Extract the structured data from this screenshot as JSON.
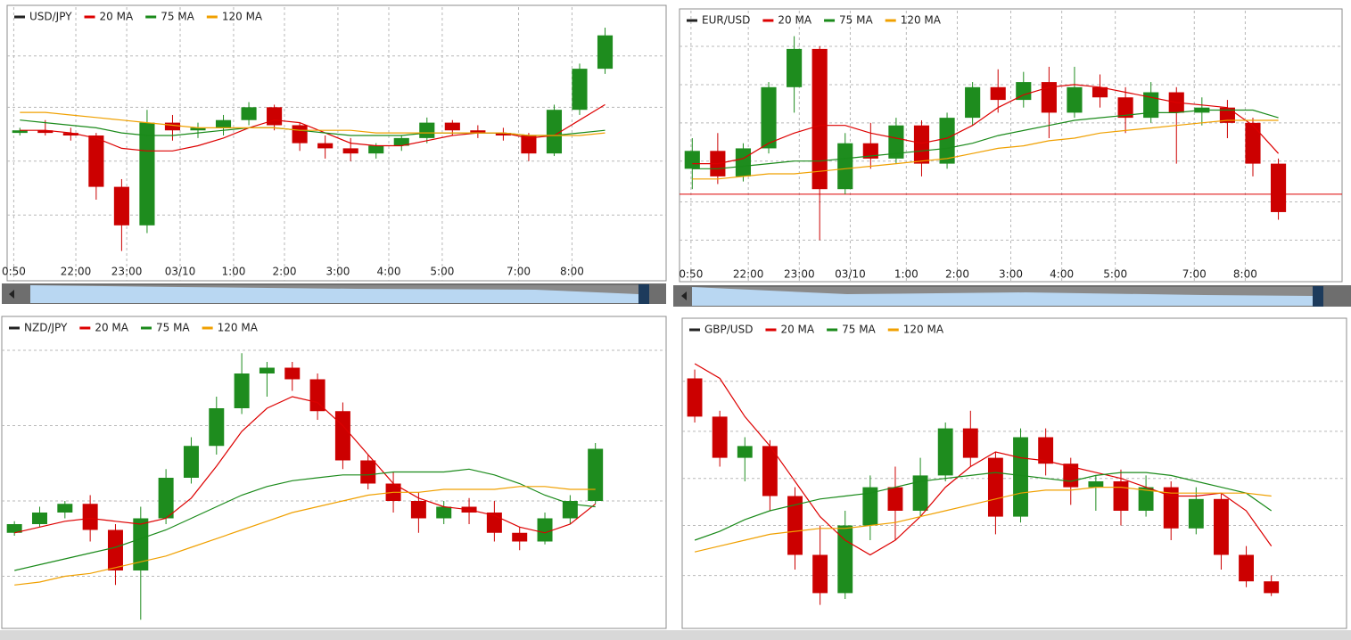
{
  "chart_data": [
    {
      "type": "candlestick",
      "up_color": "#1e8c1e",
      "down_color": "#cc0000",
      "grid": true,
      "xlim": [
        0,
        25.9
      ],
      "ylim": [
        0,
        100
      ],
      "yticks": [
        19,
        40,
        61,
        81
      ],
      "xticks": [
        {
          "value": 0.26,
          "label": "0:50"
        },
        {
          "value": 2.7,
          "label": "22:00"
        },
        {
          "value": 4.7,
          "label": "23:00"
        },
        {
          "value": 6.8,
          "label": "03/10"
        },
        {
          "value": 8.9,
          "label": "1:00"
        },
        {
          "value": 10.9,
          "label": "2:00"
        },
        {
          "value": 13.0,
          "label": "3:00"
        },
        {
          "value": 15.0,
          "label": "4:00"
        },
        {
          "value": 17.1,
          "label": "5:00"
        },
        {
          "value": 20.1,
          "label": "7:00"
        },
        {
          "value": 22.2,
          "label": "8:00"
        }
      ],
      "series": [
        {
          "name": "USD/JPY",
          "color": "#222222",
          "open": [
            51,
            52,
            51,
            50,
            30,
            15,
            55,
            52,
            53,
            56,
            61,
            54,
            47,
            45,
            43,
            46,
            49,
            55,
            52,
            51,
            50,
            43,
            60,
            76
          ],
          "high": [
            53,
            56,
            53,
            51,
            33,
            60,
            58,
            55,
            58,
            63,
            62,
            55,
            50,
            49,
            47,
            50,
            57,
            56,
            54,
            53,
            51,
            62,
            78,
            92
          ],
          "low": [
            50,
            50,
            48,
            25,
            5,
            12,
            48,
            49,
            50,
            54,
            52,
            44,
            41,
            40,
            41,
            44,
            47,
            50,
            49,
            48,
            40,
            42,
            58,
            74
          ],
          "close": [
            52,
            51,
            50,
            30,
            15,
            55,
            52,
            53,
            56,
            61,
            54,
            47,
            45,
            43,
            46,
            49,
            55,
            52,
            51,
            50,
            43,
            60,
            76,
            89
          ]
        },
        {
          "name": "20 MA",
          "color": "#dd0000",
          "values": [
            52,
            52,
            51,
            49,
            45,
            44,
            44,
            46,
            49,
            53,
            56,
            55,
            51,
            47,
            46,
            46,
            48,
            50,
            51,
            51,
            49,
            50,
            56,
            62
          ]
        },
        {
          "name": "75 MA",
          "color": "#1a8a1a",
          "values": [
            56,
            55,
            54,
            53,
            51,
            50,
            50,
            51,
            52,
            53,
            53,
            52,
            51,
            50,
            50,
            50,
            51,
            51,
            51,
            51,
            50,
            50,
            51,
            52
          ]
        },
        {
          "name": "120 MA",
          "color": "#f0a000",
          "values": [
            59,
            59,
            58,
            57,
            56,
            55,
            54,
            53,
            53,
            53,
            53,
            52,
            52,
            52,
            51,
            51,
            51,
            51,
            51,
            51,
            50,
            50,
            50,
            51
          ]
        }
      ]
    },
    {
      "type": "candlestick",
      "up_color": "#1e8c1e",
      "down_color": "#cc0000",
      "grid": true,
      "xlim": [
        0,
        26.0
      ],
      "ylim": [
        0,
        100
      ],
      "yticks": [
        10,
        25,
        41,
        56,
        71,
        86
      ],
      "price_line": 28,
      "xticks": [
        {
          "value": 0.45,
          "label": "0:50"
        },
        {
          "value": 2.7,
          "label": "22:00"
        },
        {
          "value": 4.7,
          "label": "23:00"
        },
        {
          "value": 6.7,
          "label": "03/10"
        },
        {
          "value": 8.9,
          "label": "1:00"
        },
        {
          "value": 10.9,
          "label": "2:00"
        },
        {
          "value": 13.0,
          "label": "3:00"
        },
        {
          "value": 15.0,
          "label": "4:00"
        },
        {
          "value": 17.1,
          "label": "5:00"
        },
        {
          "value": 20.2,
          "label": "7:00"
        },
        {
          "value": 22.2,
          "label": "8:00"
        }
      ],
      "series": [
        {
          "name": "EUR/USD",
          "color": "#222222",
          "open": [
            38,
            45,
            35,
            46,
            70,
            85,
            30,
            48,
            42,
            55,
            40,
            58,
            70,
            65,
            72,
            60,
            70,
            66,
            58,
            68,
            60,
            62,
            56,
            40
          ],
          "high": [
            50,
            52,
            48,
            72,
            90,
            86,
            52,
            56,
            58,
            57,
            60,
            72,
            77,
            76,
            78,
            78,
            75,
            70,
            72,
            70,
            66,
            65,
            58,
            42
          ],
          "low": [
            30,
            32,
            33,
            44,
            60,
            10,
            28,
            38,
            40,
            35,
            38,
            55,
            60,
            62,
            50,
            58,
            62,
            52,
            56,
            40,
            55,
            50,
            35,
            18
          ],
          "close": [
            45,
            35,
            46,
            70,
            85,
            30,
            48,
            42,
            55,
            40,
            58,
            70,
            65,
            72,
            60,
            70,
            66,
            58,
            68,
            60,
            62,
            56,
            40,
            21
          ]
        },
        {
          "name": "20 MA",
          "color": "#dd0000",
          "values": [
            40,
            40,
            42,
            48,
            52,
            55,
            55,
            52,
            50,
            48,
            50,
            55,
            62,
            67,
            70,
            71,
            70,
            68,
            66,
            64,
            63,
            62,
            55,
            44
          ]
        },
        {
          "name": "75 MA",
          "color": "#1a8a1a",
          "values": [
            38,
            38,
            39,
            40,
            41,
            41,
            42,
            43,
            44,
            45,
            46,
            48,
            51,
            53,
            55,
            57,
            58,
            59,
            60,
            60,
            61,
            61,
            61,
            58
          ]
        },
        {
          "name": "120 MA",
          "color": "#f0a000",
          "values": [
            34,
            34,
            35,
            36,
            36,
            37,
            38,
            39,
            40,
            41,
            42,
            44,
            46,
            47,
            49,
            50,
            52,
            53,
            54,
            55,
            56,
            57,
            57,
            57
          ]
        }
      ]
    },
    {
      "type": "candlestick",
      "up_color": "#1e8c1e",
      "down_color": "#cc0000",
      "grid": true,
      "xlim": [
        0,
        26.3
      ],
      "ylim": [
        0,
        100
      ],
      "yticks": [
        18,
        44,
        70,
        96
      ],
      "series": [
        {
          "name": "NZD/JPY",
          "color": "#222222",
          "open": [
            33,
            36,
            40,
            43,
            34,
            20,
            38,
            52,
            63,
            76,
            88,
            90,
            86,
            75,
            58,
            50,
            44,
            38,
            42,
            40,
            33,
            30,
            38,
            44
          ],
          "high": [
            37,
            42,
            44,
            46,
            36,
            42,
            55,
            66,
            80,
            95,
            92,
            92,
            88,
            78,
            60,
            54,
            47,
            44,
            45,
            44,
            35,
            40,
            46,
            64
          ],
          "low": [
            32,
            35,
            38,
            30,
            15,
            3,
            36,
            50,
            60,
            74,
            80,
            82,
            72,
            55,
            48,
            40,
            33,
            36,
            36,
            30,
            27,
            29,
            36,
            43
          ],
          "close": [
            36,
            40,
            43,
            34,
            20,
            38,
            52,
            63,
            76,
            88,
            90,
            86,
            75,
            58,
            50,
            44,
            38,
            42,
            40,
            33,
            30,
            38,
            44,
            62
          ]
        },
        {
          "name": "20 MA",
          "color": "#dd0000",
          "values": [
            33,
            35,
            37,
            38,
            37,
            36,
            38,
            45,
            56,
            68,
            76,
            80,
            78,
            70,
            60,
            50,
            45,
            42,
            41,
            39,
            35,
            33,
            36,
            43
          ]
        },
        {
          "name": "75 MA",
          "color": "#1a8a1a",
          "values": [
            20,
            22,
            24,
            26,
            28,
            31,
            34,
            38,
            42,
            46,
            49,
            51,
            52,
            53,
            53,
            54,
            54,
            54,
            55,
            53,
            50,
            46,
            43,
            42
          ]
        },
        {
          "name": "120 MA",
          "color": "#f0a000",
          "values": [
            15,
            16,
            18,
            19,
            21,
            23,
            25,
            28,
            31,
            34,
            37,
            40,
            42,
            44,
            46,
            47,
            47,
            48,
            48,
            48,
            49,
            49,
            48,
            48
          ]
        }
      ]
    },
    {
      "type": "candlestick",
      "up_color": "#1e8c1e",
      "down_color": "#cc0000",
      "grid": true,
      "xlim": [
        0,
        26.5
      ],
      "ylim": [
        0,
        100
      ],
      "yticks": [
        18,
        35,
        51,
        67,
        84
      ],
      "series": [
        {
          "name": "GBP/USD",
          "color": "#222222",
          "open": [
            85,
            72,
            58,
            62,
            45,
            25,
            12,
            35,
            48,
            40,
            52,
            68,
            58,
            38,
            65,
            56,
            48,
            50,
            40,
            48,
            34,
            44,
            25,
            16
          ],
          "high": [
            88,
            74,
            65,
            64,
            48,
            35,
            40,
            52,
            55,
            58,
            70,
            74,
            60,
            68,
            68,
            58,
            52,
            54,
            52,
            50,
            48,
            46,
            28,
            18
          ],
          "low": [
            70,
            55,
            50,
            40,
            20,
            8,
            10,
            30,
            30,
            38,
            50,
            55,
            32,
            36,
            52,
            42,
            40,
            35,
            38,
            30,
            32,
            20,
            14,
            11
          ],
          "close": [
            72,
            58,
            62,
            45,
            25,
            12,
            35,
            48,
            40,
            52,
            68,
            58,
            38,
            65,
            56,
            48,
            50,
            40,
            48,
            34,
            44,
            25,
            16,
            12
          ]
        },
        {
          "name": "20 MA",
          "color": "#dd0000",
          "values": [
            90,
            85,
            72,
            62,
            50,
            38,
            30,
            25,
            30,
            38,
            48,
            55,
            60,
            58,
            57,
            55,
            53,
            51,
            48,
            45,
            45,
            46,
            40,
            28
          ]
        },
        {
          "name": "75 MA",
          "color": "#1a8a1a",
          "values": [
            30,
            33,
            37,
            40,
            42,
            44,
            45,
            46,
            48,
            50,
            51,
            52,
            53,
            52,
            51,
            50,
            52,
            53,
            53,
            52,
            50,
            48,
            46,
            40
          ]
        },
        {
          "name": "120 MA",
          "color": "#f0a000",
          "values": [
            26,
            28,
            30,
            32,
            33,
            34,
            34,
            35,
            36,
            38,
            40,
            42,
            44,
            46,
            47,
            47,
            48,
            48,
            47,
            46,
            46,
            46,
            46,
            45
          ]
        }
      ]
    }
  ]
}
